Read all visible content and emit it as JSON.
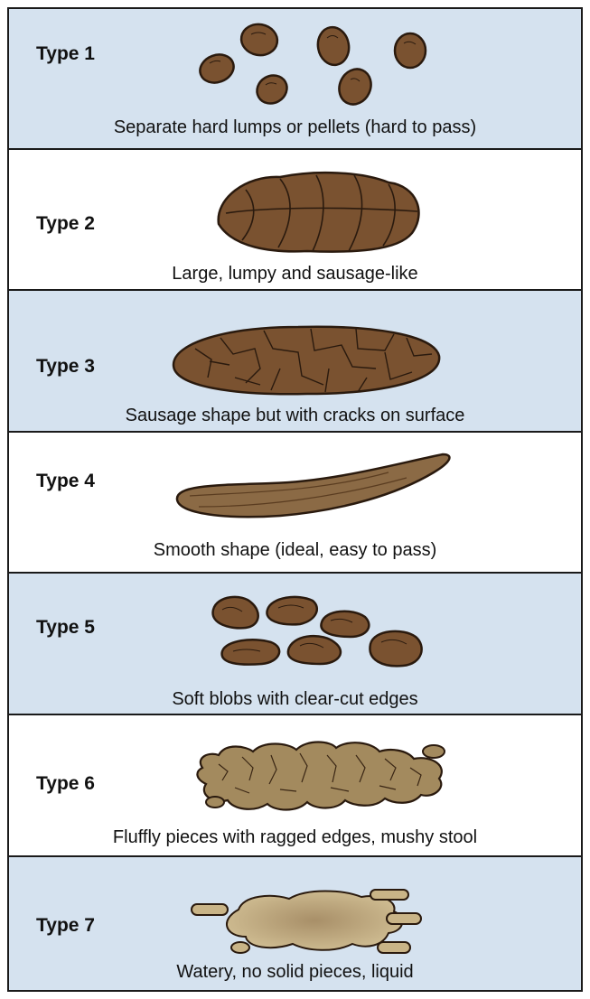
{
  "colors": {
    "row_alt": "#d5e2ef",
    "row_plain": "#ffffff",
    "stool_dark": "#7a5230",
    "stool_mid": "#8b6a45",
    "stool_light": "#a38a5e",
    "liquid": "#c9b487",
    "outline": "#2a1a0e"
  },
  "rows": [
    {
      "label": "Type 1",
      "description": "Separate hard lumps or pellets (hard to pass)",
      "icon": "hard-pellets-icon"
    },
    {
      "label": "Type 2",
      "description": "Large, lumpy and sausage-like",
      "icon": "lumpy-sausage-icon"
    },
    {
      "label": "Type 3",
      "description": "Sausage shape but with cracks on surface",
      "icon": "cracked-sausage-icon"
    },
    {
      "label": "Type 4",
      "description": "Smooth shape (ideal, easy to pass)",
      "icon": "smooth-sausage-icon"
    },
    {
      "label": "Type 5",
      "description": "Soft blobs with clear-cut edges",
      "icon": "soft-blobs-icon"
    },
    {
      "label": "Type 6",
      "description": "Fluffly pieces with ragged edges, mushy stool",
      "icon": "mushy-pieces-icon"
    },
    {
      "label": "Type 7",
      "description": "Watery, no solid pieces, liquid",
      "icon": "watery-liquid-icon"
    }
  ]
}
